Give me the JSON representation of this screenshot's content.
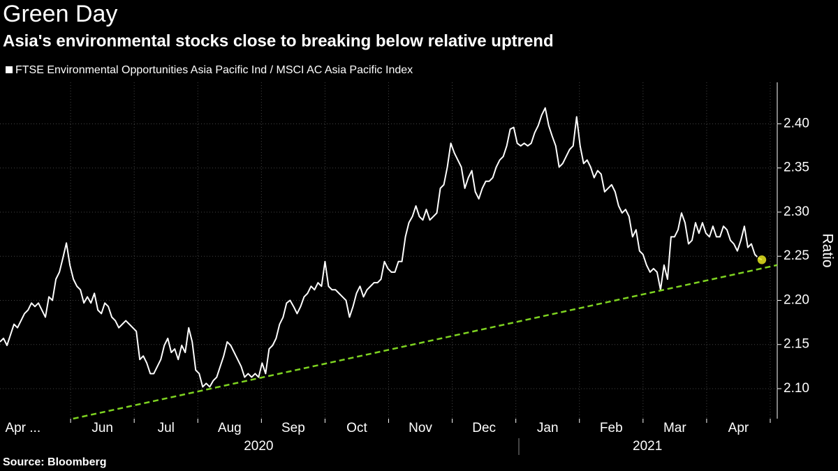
{
  "chart_data": {
    "type": "line",
    "title": "Green Day",
    "subtitle": "Asia's environmental stocks close to breaking below relative uptrend",
    "source": "Source: Bloomberg",
    "y_axis_label": "Ratio",
    "grid": true,
    "xlim": [
      0.89,
      13.11
    ],
    "ylim": [
      2.066,
      2.447
    ],
    "xticks": [
      2,
      3,
      4,
      5,
      6,
      7,
      8,
      9,
      10,
      11,
      12,
      13
    ],
    "month_labels": [
      {
        "value": 1.25,
        "label": "Apr ..."
      },
      {
        "value": 2.5,
        "label": "Jun"
      },
      {
        "value": 3.5,
        "label": "Jul"
      },
      {
        "value": 4.5,
        "label": "Aug"
      },
      {
        "value": 5.5,
        "label": "Sep"
      },
      {
        "value": 6.5,
        "label": "Oct"
      },
      {
        "value": 7.5,
        "label": "Nov"
      },
      {
        "value": 8.5,
        "label": "Dec"
      },
      {
        "value": 9.5,
        "label": "Jan"
      },
      {
        "value": 10.5,
        "label": "Feb"
      },
      {
        "value": 11.5,
        "label": "Mar"
      },
      {
        "value": 12.5,
        "label": "Apr"
      }
    ],
    "year_labels": [
      {
        "value": 4.956,
        "label": "2020"
      },
      {
        "value": 11.07,
        "label": "2021"
      }
    ],
    "yticks": [
      {
        "value": 2.1,
        "label": "2.10"
      },
      {
        "value": 2.15,
        "label": "2.15"
      },
      {
        "value": 2.2,
        "label": "2.20"
      },
      {
        "value": 2.25,
        "label": "2.25"
      },
      {
        "value": 2.3,
        "label": "2.30"
      },
      {
        "value": 2.35,
        "label": "2.35"
      },
      {
        "value": 2.4,
        "label": "2.40"
      }
    ],
    "last_point_marker": "#e6e61e",
    "series": [
      {
        "name": "FTSE Environmental Opportunities Asia Pacific Ind / MSCI AC Asia Pacific Index",
        "color": "#ffffff",
        "x": [
          0.89,
          0.945,
          1.0,
          1.055,
          1.11,
          1.165,
          1.22,
          1.275,
          1.33,
          1.385,
          1.439,
          1.494,
          1.549,
          1.604,
          1.659,
          1.714,
          1.769,
          1.824,
          1.879,
          1.934,
          1.989,
          2.044,
          2.099,
          2.154,
          2.209,
          2.264,
          2.319,
          2.374,
          2.429,
          2.484,
          2.538,
          2.593,
          2.648,
          2.703,
          2.758,
          2.813,
          2.868,
          2.923,
          2.978,
          3.033,
          3.088,
          3.143,
          3.198,
          3.253,
          3.308,
          3.363,
          3.418,
          3.473,
          3.528,
          3.583,
          3.637,
          3.692,
          3.747,
          3.802,
          3.857,
          3.912,
          3.967,
          4.022,
          4.077,
          4.132,
          4.187,
          4.242,
          4.297,
          4.352,
          4.407,
          4.462,
          4.517,
          4.572,
          4.627,
          4.682,
          4.736,
          4.791,
          4.846,
          4.901,
          4.956,
          5.011,
          5.066,
          5.121,
          5.176,
          5.231,
          5.286,
          5.341,
          5.396,
          5.451,
          5.506,
          5.561,
          5.616,
          5.671,
          5.726,
          5.781,
          5.835,
          5.89,
          5.945,
          6.0,
          6.055,
          6.11,
          6.165,
          6.22,
          6.275,
          6.33,
          6.385,
          6.44,
          6.495,
          6.55,
          6.605,
          6.66,
          6.715,
          6.77,
          6.825,
          6.88,
          6.934,
          6.989,
          7.044,
          7.099,
          7.154,
          7.209,
          7.264,
          7.319,
          7.374,
          7.429,
          7.483,
          7.538,
          7.593,
          7.648,
          7.703,
          7.758,
          7.813,
          7.868,
          7.923,
          7.978,
          8.033,
          8.088,
          8.143,
          8.198,
          8.253,
          8.308,
          8.363,
          8.418,
          8.473,
          8.528,
          8.582,
          8.637,
          8.692,
          8.747,
          8.802,
          8.857,
          8.912,
          8.967,
          9.022,
          9.077,
          9.132,
          9.187,
          9.242,
          9.297,
          9.352,
          9.407,
          9.462,
          9.517,
          9.572,
          9.627,
          9.681,
          9.736,
          9.791,
          9.846,
          9.901,
          9.956,
          10.011,
          10.066,
          10.121,
          10.176,
          10.231,
          10.286,
          10.341,
          10.396,
          10.451,
          10.506,
          10.561,
          10.616,
          10.671,
          10.726,
          10.78,
          10.835,
          10.89,
          10.945,
          11.0,
          11.055,
          11.11,
          11.165,
          11.22,
          11.275,
          11.33,
          11.385,
          11.44,
          11.495,
          11.55,
          11.605,
          11.66,
          11.715,
          11.77,
          11.825,
          11.879,
          11.934,
          11.989,
          12.044,
          12.099,
          12.154,
          12.209,
          12.264,
          12.319,
          12.374,
          12.428,
          12.483,
          12.538,
          12.593,
          12.648,
          12.703,
          12.758,
          12.813,
          12.868
        ],
        "values": [
          2.153,
          2.157,
          2.149,
          2.161,
          2.173,
          2.169,
          2.177,
          2.185,
          2.189,
          2.197,
          2.193,
          2.197,
          2.189,
          2.181,
          2.204,
          2.2,
          2.224,
          2.232,
          2.248,
          2.265,
          2.24,
          2.224,
          2.216,
          2.212,
          2.197,
          2.204,
          2.197,
          2.208,
          2.189,
          2.185,
          2.197,
          2.193,
          2.181,
          2.177,
          2.169,
          2.173,
          2.177,
          2.173,
          2.169,
          2.165,
          2.133,
          2.137,
          2.129,
          2.117,
          2.117,
          2.125,
          2.133,
          2.149,
          2.157,
          2.141,
          2.145,
          2.133,
          2.149,
          2.141,
          2.169,
          2.153,
          2.121,
          2.117,
          2.102,
          2.106,
          2.102,
          2.109,
          2.113,
          2.125,
          2.137,
          2.153,
          2.149,
          2.141,
          2.133,
          2.125,
          2.113,
          2.117,
          2.113,
          2.117,
          2.113,
          2.129,
          2.117,
          2.145,
          2.149,
          2.157,
          2.173,
          2.181,
          2.197,
          2.2,
          2.193,
          2.185,
          2.193,
          2.204,
          2.208,
          2.216,
          2.212,
          2.22,
          2.216,
          2.244,
          2.216,
          2.212,
          2.212,
          2.208,
          2.204,
          2.2,
          2.181,
          2.193,
          2.208,
          2.216,
          2.204,
          2.212,
          2.216,
          2.22,
          2.22,
          2.224,
          2.244,
          2.236,
          2.232,
          2.232,
          2.244,
          2.244,
          2.272,
          2.288,
          2.295,
          2.307,
          2.295,
          2.291,
          2.303,
          2.291,
          2.295,
          2.299,
          2.327,
          2.331,
          2.351,
          2.378,
          2.367,
          2.359,
          2.351,
          2.327,
          2.339,
          2.347,
          2.323,
          2.315,
          2.327,
          2.335,
          2.335,
          2.339,
          2.351,
          2.359,
          2.363,
          2.375,
          2.394,
          2.396,
          2.378,
          2.375,
          2.378,
          2.375,
          2.378,
          2.39,
          2.398,
          2.41,
          2.418,
          2.398,
          2.386,
          2.375,
          2.351,
          2.355,
          2.363,
          2.371,
          2.375,
          2.408,
          2.375,
          2.355,
          2.359,
          2.351,
          2.339,
          2.347,
          2.343,
          2.323,
          2.327,
          2.331,
          2.323,
          2.307,
          2.299,
          2.303,
          2.295,
          2.272,
          2.28,
          2.256,
          2.252,
          2.24,
          2.232,
          2.236,
          2.232,
          2.212,
          2.24,
          2.224,
          2.272,
          2.272,
          2.28,
          2.299,
          2.288,
          2.264,
          2.268,
          2.288,
          2.276,
          2.288,
          2.276,
          2.272,
          2.284,
          2.272,
          2.272,
          2.284,
          2.28,
          2.268,
          2.264,
          2.256,
          2.268,
          2.284,
          2.26,
          2.264,
          2.252,
          2.248,
          2.246
        ]
      },
      {
        "color": "#7ed321",
        "dashed": true,
        "x": [
          2.04,
          13.11
        ],
        "values": [
          2.066,
          2.24
        ]
      }
    ]
  }
}
